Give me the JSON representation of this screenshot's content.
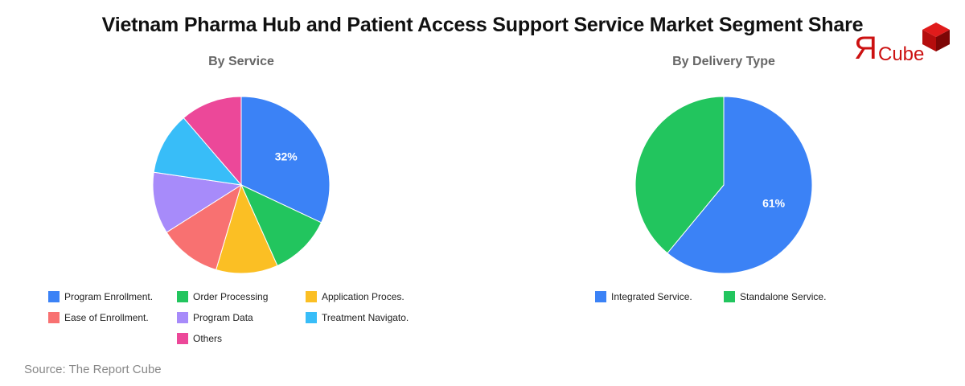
{
  "title": "Vietnam Pharma Hub and Patient Access Support Service Market Segment Share",
  "logo": {
    "mark": "Я",
    "text": "Cube"
  },
  "source": "Source: The Report Cube",
  "chart_data": [
    {
      "type": "pie",
      "title": "By Service",
      "categories": [
        "Program Enrollment.",
        "Order Processing",
        "Application Proces.",
        "Ease of Enrollment.",
        "Program Data",
        "Treatment Navigato.",
        "Others"
      ],
      "values": [
        32,
        11.3,
        11.3,
        11.4,
        11.3,
        11.4,
        11.3
      ],
      "colors": [
        "#3b82f6",
        "#22c55e",
        "#fbbf24",
        "#f87171",
        "#a78bfa",
        "#38bdf8",
        "#ec4899"
      ],
      "data_labels": [
        "32%",
        "",
        "",
        "",
        "",
        "",
        ""
      ],
      "legend_position": "bottom"
    },
    {
      "type": "pie",
      "title": "By Delivery Type",
      "categories": [
        "Integrated Service.",
        "Standalone Service."
      ],
      "values": [
        61,
        39
      ],
      "colors": [
        "#3b82f6",
        "#22c55e"
      ],
      "data_labels": [
        "61%",
        ""
      ],
      "legend_position": "bottom"
    }
  ]
}
